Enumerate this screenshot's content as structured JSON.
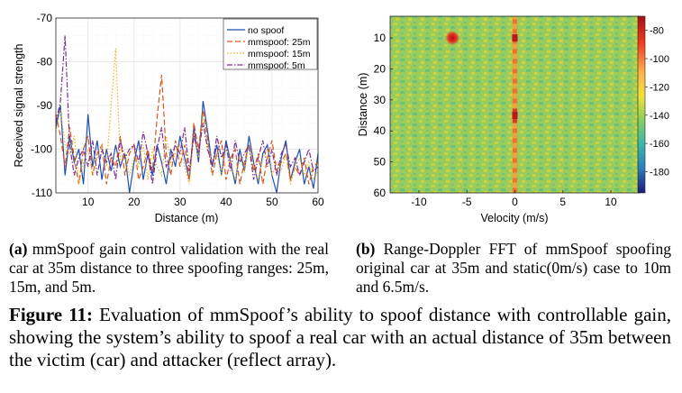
{
  "panel_a": {
    "ylabel": "Received signal strength",
    "xlabel": "Distance (m)",
    "xticks": [
      "10",
      "20",
      "30",
      "40",
      "50",
      "60"
    ],
    "yticks": [
      "-70",
      "-80",
      "-90",
      "-100",
      "-110"
    ],
    "legend": [
      {
        "name": "no spoof",
        "color": "#1f4fb4",
        "dash": "none"
      },
      {
        "name": "mmspoof: 25m",
        "color": "#d9541a",
        "dash": "6,3"
      },
      {
        "name": "mmspoof: 15m",
        "color": "#edb120",
        "dash": "1.5,2"
      },
      {
        "name": "mmspoof: 5m",
        "color": "#7e2f8e",
        "dash": "6,2,1.5,2"
      }
    ]
  },
  "panel_b": {
    "ylabel": "Distance (m)",
    "xlabel": "Velocity (m/s)",
    "xticks": [
      "-10",
      "-5",
      "0",
      "5",
      "10"
    ],
    "yticks": [
      "10",
      "20",
      "30",
      "40",
      "50",
      "60"
    ],
    "colorbar_ticks": [
      "-80",
      "-100",
      "-120",
      "-140",
      "-160",
      "-180"
    ]
  },
  "subcaption_a": {
    "label": "(a)",
    "text": "mmSpoof gain control validation with the real car at 35m distance to three spoofing ranges: 25m, 15m, and 5m."
  },
  "subcaption_b": {
    "label": "(b)",
    "text": "Range-Doppler FFT of mmSpoof spoofing original car at 35m and static(0m/s) case to 10m and 6.5m/s."
  },
  "caption": {
    "label": "Figure 11:",
    "text": "Evaluation of mmSpoof’s ability to spoof distance with controllable gain, showing the system’s ability to spoof a real car with an actual distance of 35m between the victim (car) and attacker (reflect array)."
  },
  "chart_data": [
    {
      "type": "line",
      "xlabel": "Distance (m)",
      "ylabel": "Received signal strength",
      "xlim": [
        3,
        60
      ],
      "ylim": [
        -110,
        -70
      ],
      "grid": true,
      "legend_position": "top-right",
      "x": [
        3,
        4,
        5,
        6,
        7,
        8,
        9,
        10,
        11,
        12,
        13,
        14,
        15,
        16,
        17,
        18,
        19,
        20,
        21,
        22,
        23,
        24,
        25,
        26,
        27,
        28,
        29,
        30,
        31,
        32,
        33,
        34,
        35,
        36,
        37,
        38,
        39,
        40,
        41,
        42,
        43,
        44,
        45,
        46,
        47,
        48,
        49,
        50,
        51,
        52,
        53,
        54,
        55,
        56,
        57,
        58,
        59,
        60
      ],
      "series": [
        {
          "name": "no spoof",
          "values": [
            -95,
            -90,
            -106,
            -97,
            -103,
            -100,
            -108,
            -92,
            -104,
            -98,
            -107,
            -100,
            -105,
            -99,
            -104,
            -101,
            -110,
            -103,
            -98,
            -107,
            -101,
            -106,
            -99,
            -103,
            -108,
            -100,
            -104,
            -97,
            -102,
            -107,
            -95,
            -103,
            -89,
            -96,
            -104,
            -99,
            -106,
            -98,
            -103,
            -108,
            -100,
            -105,
            -97,
            -103,
            -108,
            -101,
            -99,
            -106,
            -110,
            -102,
            -98,
            -107,
            -103,
            -100,
            -108,
            -104,
            -109,
            -101
          ]
        },
        {
          "name": "mmspoof: 25m",
          "values": [
            -92,
            -97,
            -104,
            -95,
            -102,
            -108,
            -100,
            -97,
            -106,
            -101,
            -99,
            -108,
            -102,
            -104,
            -97,
            -106,
            -101,
            -99,
            -107,
            -104,
            -100,
            -105,
            -93,
            -83,
            -101,
            -106,
            -98,
            -104,
            -99,
            -107,
            -94,
            -100,
            -91,
            -98,
            -106,
            -101,
            -98,
            -107,
            -102,
            -100,
            -108,
            -103,
            -99,
            -105,
            -101,
            -108,
            -102,
            -98,
            -105,
            -103,
            -101,
            -107,
            -104,
            -106,
            -102,
            -108,
            -104,
            -103
          ]
        },
        {
          "name": "mmspoof: 15m",
          "values": [
            -96,
            -91,
            -99,
            -101,
            -97,
            -108,
            -103,
            -100,
            -106,
            -102,
            -99,
            -104,
            -90,
            -77,
            -103,
            -101,
            -106,
            -102,
            -104,
            -99,
            -107,
            -100,
            -104,
            -106,
            -97,
            -103,
            -101,
            -99,
            -104,
            -108,
            -97,
            -102,
            -92,
            -99,
            -103,
            -101,
            -106,
            -100,
            -103,
            -107,
            -102,
            -105,
            -99,
            -104,
            -107,
            -102,
            -100,
            -106,
            -103,
            -105,
            -101,
            -108,
            -104,
            -102,
            -106,
            -103,
            -107,
            -105
          ]
        },
        {
          "name": "mmspoof: 5m",
          "values": [
            -94,
            -89,
            -74,
            -99,
            -106,
            -102,
            -100,
            -104,
            -98,
            -106,
            -100,
            -103,
            -101,
            -107,
            -98,
            -102,
            -100,
            -99,
            -103,
            -96,
            -101,
            -108,
            -100,
            -95,
            -104,
            -102,
            -99,
            -101,
            -95,
            -105,
            -97,
            -101,
            -94,
            -100,
            -104,
            -97,
            -102,
            -99,
            -105,
            -98,
            -103,
            -101,
            -99,
            -107,
            -102,
            -98,
            -104,
            -100,
            -106,
            -101,
            -99,
            -104,
            -102,
            -106,
            -103,
            -100,
            -105,
            -104
          ]
        }
      ]
    },
    {
      "type": "heatmap",
      "xlabel": "Velocity (m/s)",
      "ylabel": "Distance (m)",
      "xlim": [
        -13,
        13
      ],
      "ylim": [
        60,
        3
      ],
      "colorbar_range": [
        -195,
        -70
      ],
      "background_level": -130,
      "features": [
        {
          "velocity": 0,
          "distance": 10,
          "level": -80
        },
        {
          "velocity": 0,
          "distance": 35,
          "level": -80
        },
        {
          "velocity": -6.5,
          "distance": 10,
          "level": -78
        },
        {
          "velocity": 0,
          "distance_range": [
            3,
            60
          ],
          "level": -105
        }
      ]
    }
  ]
}
